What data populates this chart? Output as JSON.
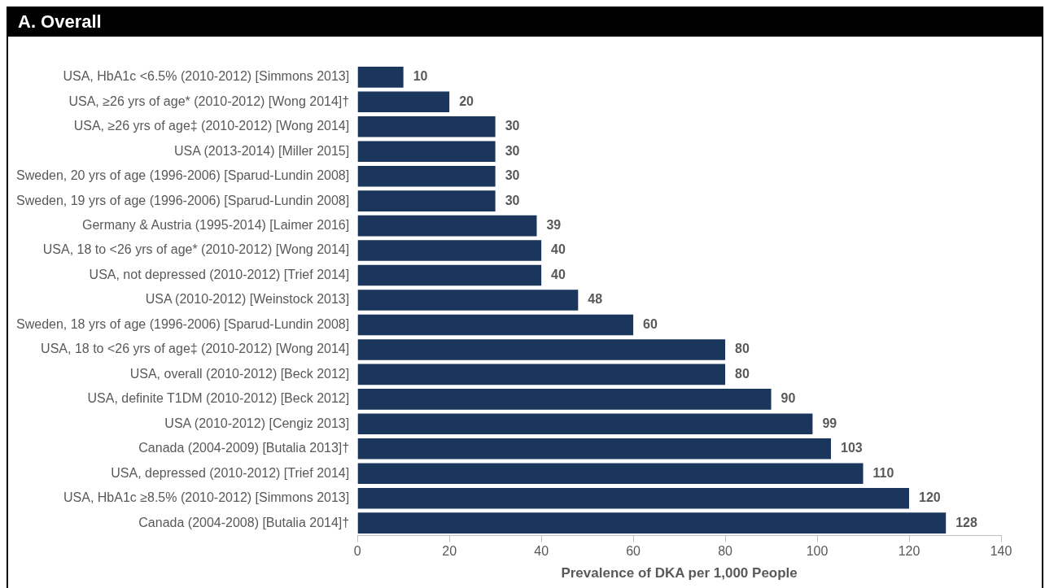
{
  "chart_data": {
    "type": "bar",
    "orientation": "horizontal",
    "title": "A. Overall",
    "xlabel": "Prevalence of DKA per 1,000 People",
    "categories": [
      "USA, HbA1c <6.5% (2010-2012) [Simmons 2013]",
      "USA, ≥26 yrs of age* (2010-2012) [Wong 2014]†",
      "USA, ≥26 yrs of age‡ (2010-2012) [Wong 2014]",
      "USA (2013-2014) [Miller 2015]",
      "Sweden, 20 yrs of age (1996-2006) [Sparud-Lundin 2008]",
      "Sweden, 19 yrs of age (1996-2006) [Sparud-Lundin 2008]",
      "Germany & Austria (1995-2014) [Laimer 2016]",
      "USA, 18 to <26 yrs of age* (2010-2012) [Wong 2014]",
      "USA, not depressed (2010-2012) [Trief 2014]",
      "USA (2010-2012) [Weinstock 2013]",
      "Sweden, 18 yrs of age (1996-2006) [Sparud-Lundin 2008]",
      "USA, 18 to <26 yrs of age‡ (2010-2012) [Wong 2014]",
      "USA, overall (2010-2012) [Beck 2012]",
      "USA, definite T1DM (2010-2012) [Beck 2012]",
      "USA (2010-2012) [Cengiz 2013]",
      "Canada (2004-2009) [Butalia 2013]†",
      "USA, depressed (2010-2012) [Trief 2014]",
      "USA, HbA1c ≥8.5% (2010-2012) [Simmons 2013]",
      "Canada (2004-2008) [Butalia 2014]†"
    ],
    "values": [
      10,
      20,
      30,
      30,
      30,
      30,
      39,
      40,
      40,
      48,
      60,
      80,
      80,
      90,
      99,
      103,
      110,
      120,
      128
    ],
    "color": "#1b365d",
    "xlim": [
      0,
      140
    ],
    "xticks": [
      0,
      20,
      40,
      60,
      80,
      100,
      120,
      140
    ],
    "grid": false,
    "legend": false,
    "data_labels": true
  }
}
